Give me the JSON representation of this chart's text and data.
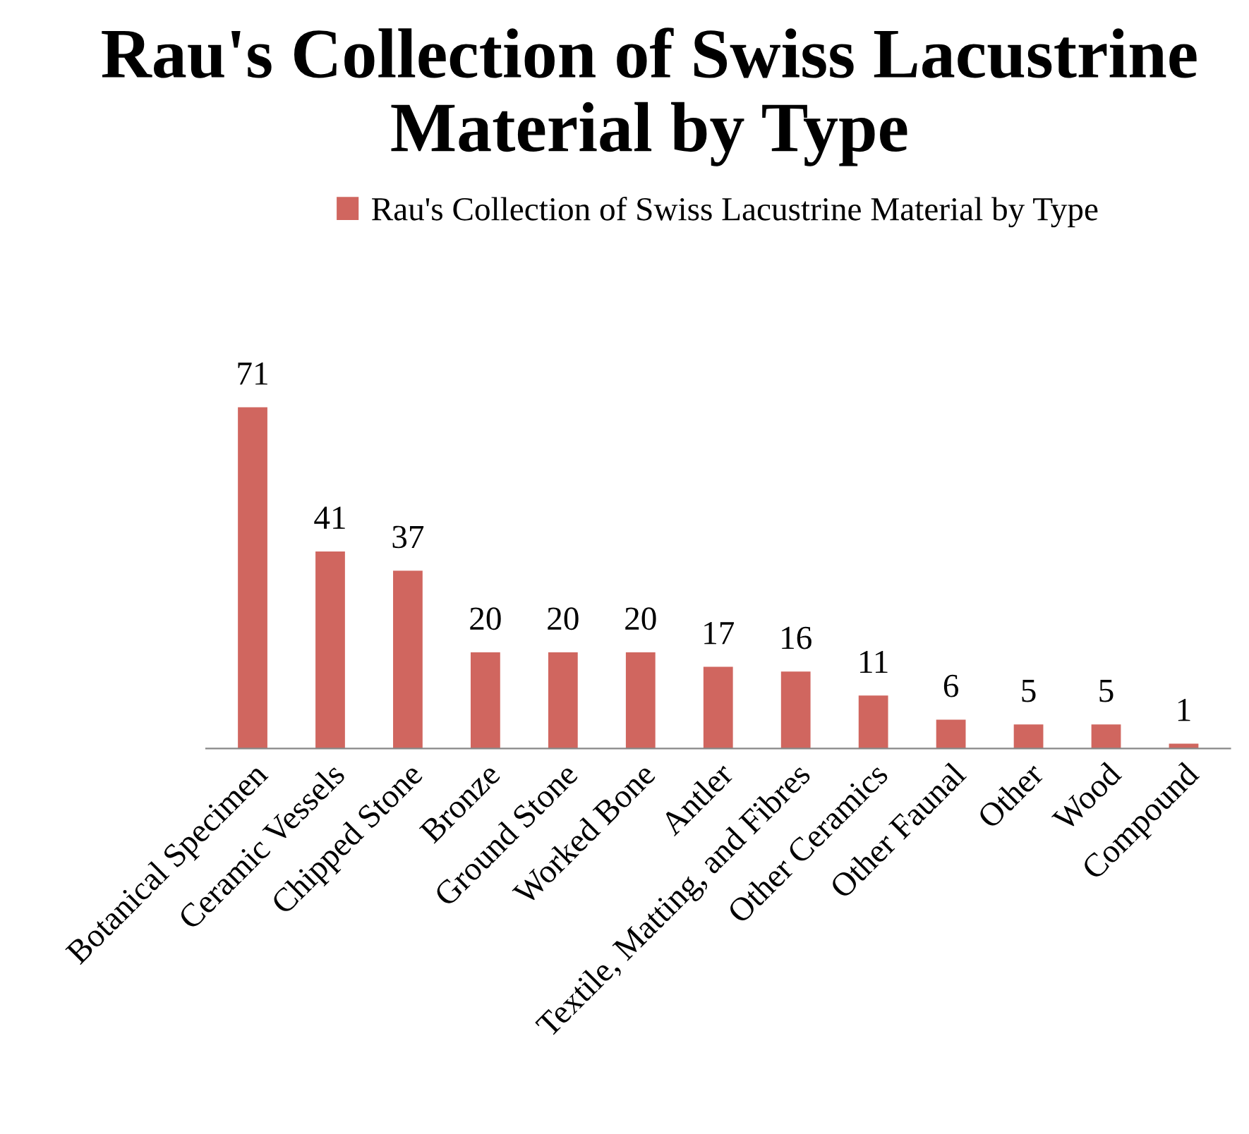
{
  "chart_data": {
    "type": "bar",
    "title": "Rau's Collection of Swiss Lacustrine Material by Type",
    "categories": [
      "Botanical Specimen",
      "Ceramic Vessels",
      "Chipped Stone",
      "Bronze",
      "Ground Stone",
      "Worked Bone",
      "Antler",
      "Textile, Matting, and Fibres",
      "Other Ceramics",
      "Other Faunal",
      "Other",
      "Wood",
      "Compound"
    ],
    "series": [
      {
        "name": "Rau's Collection of Swiss Lacustrine Material by Type",
        "color": "#d0665f",
        "values": [
          71,
          41,
          37,
          20,
          20,
          20,
          17,
          16,
          11,
          6,
          5,
          5,
          1
        ]
      }
    ],
    "data_labels": true,
    "legend": "top",
    "tick_labels": "x",
    "grid": false
  }
}
